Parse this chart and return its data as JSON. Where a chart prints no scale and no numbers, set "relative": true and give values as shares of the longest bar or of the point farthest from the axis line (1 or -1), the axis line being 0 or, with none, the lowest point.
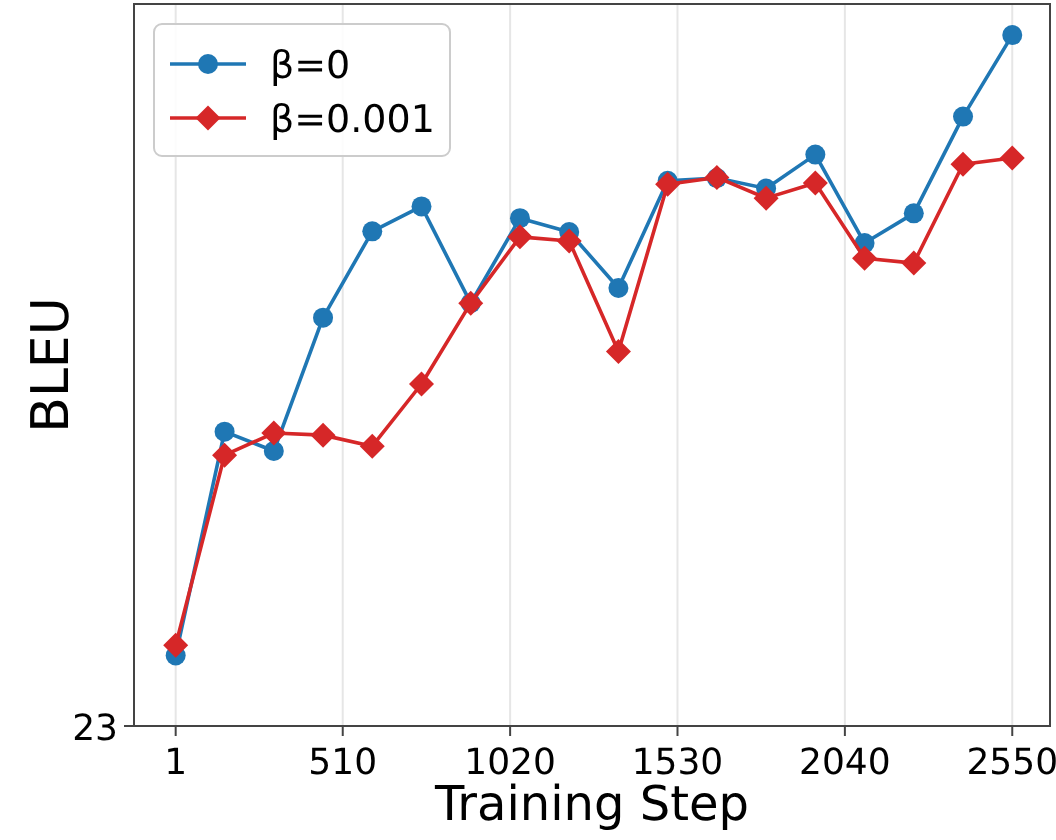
{
  "chart_data": {
    "type": "line",
    "xlabel": "Training Step",
    "ylabel": "BLEU",
    "relative": true,
    "x": [
      1,
      150,
      300,
      450,
      600,
      750,
      900,
      1050,
      1200,
      1350,
      1500,
      1650,
      1800,
      1950,
      2100,
      2250,
      2400,
      2550
    ],
    "xlim": [
      -126,
      2665
    ],
    "xticks": [
      1,
      510,
      1020,
      1530,
      2040,
      2550
    ],
    "annotations": [
      "23"
    ],
    "grid": "x",
    "legend": "top left",
    "line_style": "solid",
    "series": [
      {
        "name": "β=0",
        "color": "#1f77b4",
        "marker": "circle",
        "values": [
          0.102,
          0.426,
          0.398,
          0.591,
          0.716,
          0.752,
          0.612,
          0.735,
          0.715,
          0.634,
          0.789,
          0.793,
          0.778,
          0.827,
          0.699,
          0.742,
          0.882,
          1
        ]
      },
      {
        "name": "β=0.001",
        "color": "#d62728",
        "marker": "diamond",
        "values": [
          0.117,
          0.392,
          0.424,
          0.421,
          0.405,
          0.495,
          0.612,
          0.708,
          0.702,
          0.542,
          0.784,
          0.794,
          0.764,
          0.786,
          0.677,
          0.67,
          0.813,
          0.822
        ]
      }
    ]
  }
}
